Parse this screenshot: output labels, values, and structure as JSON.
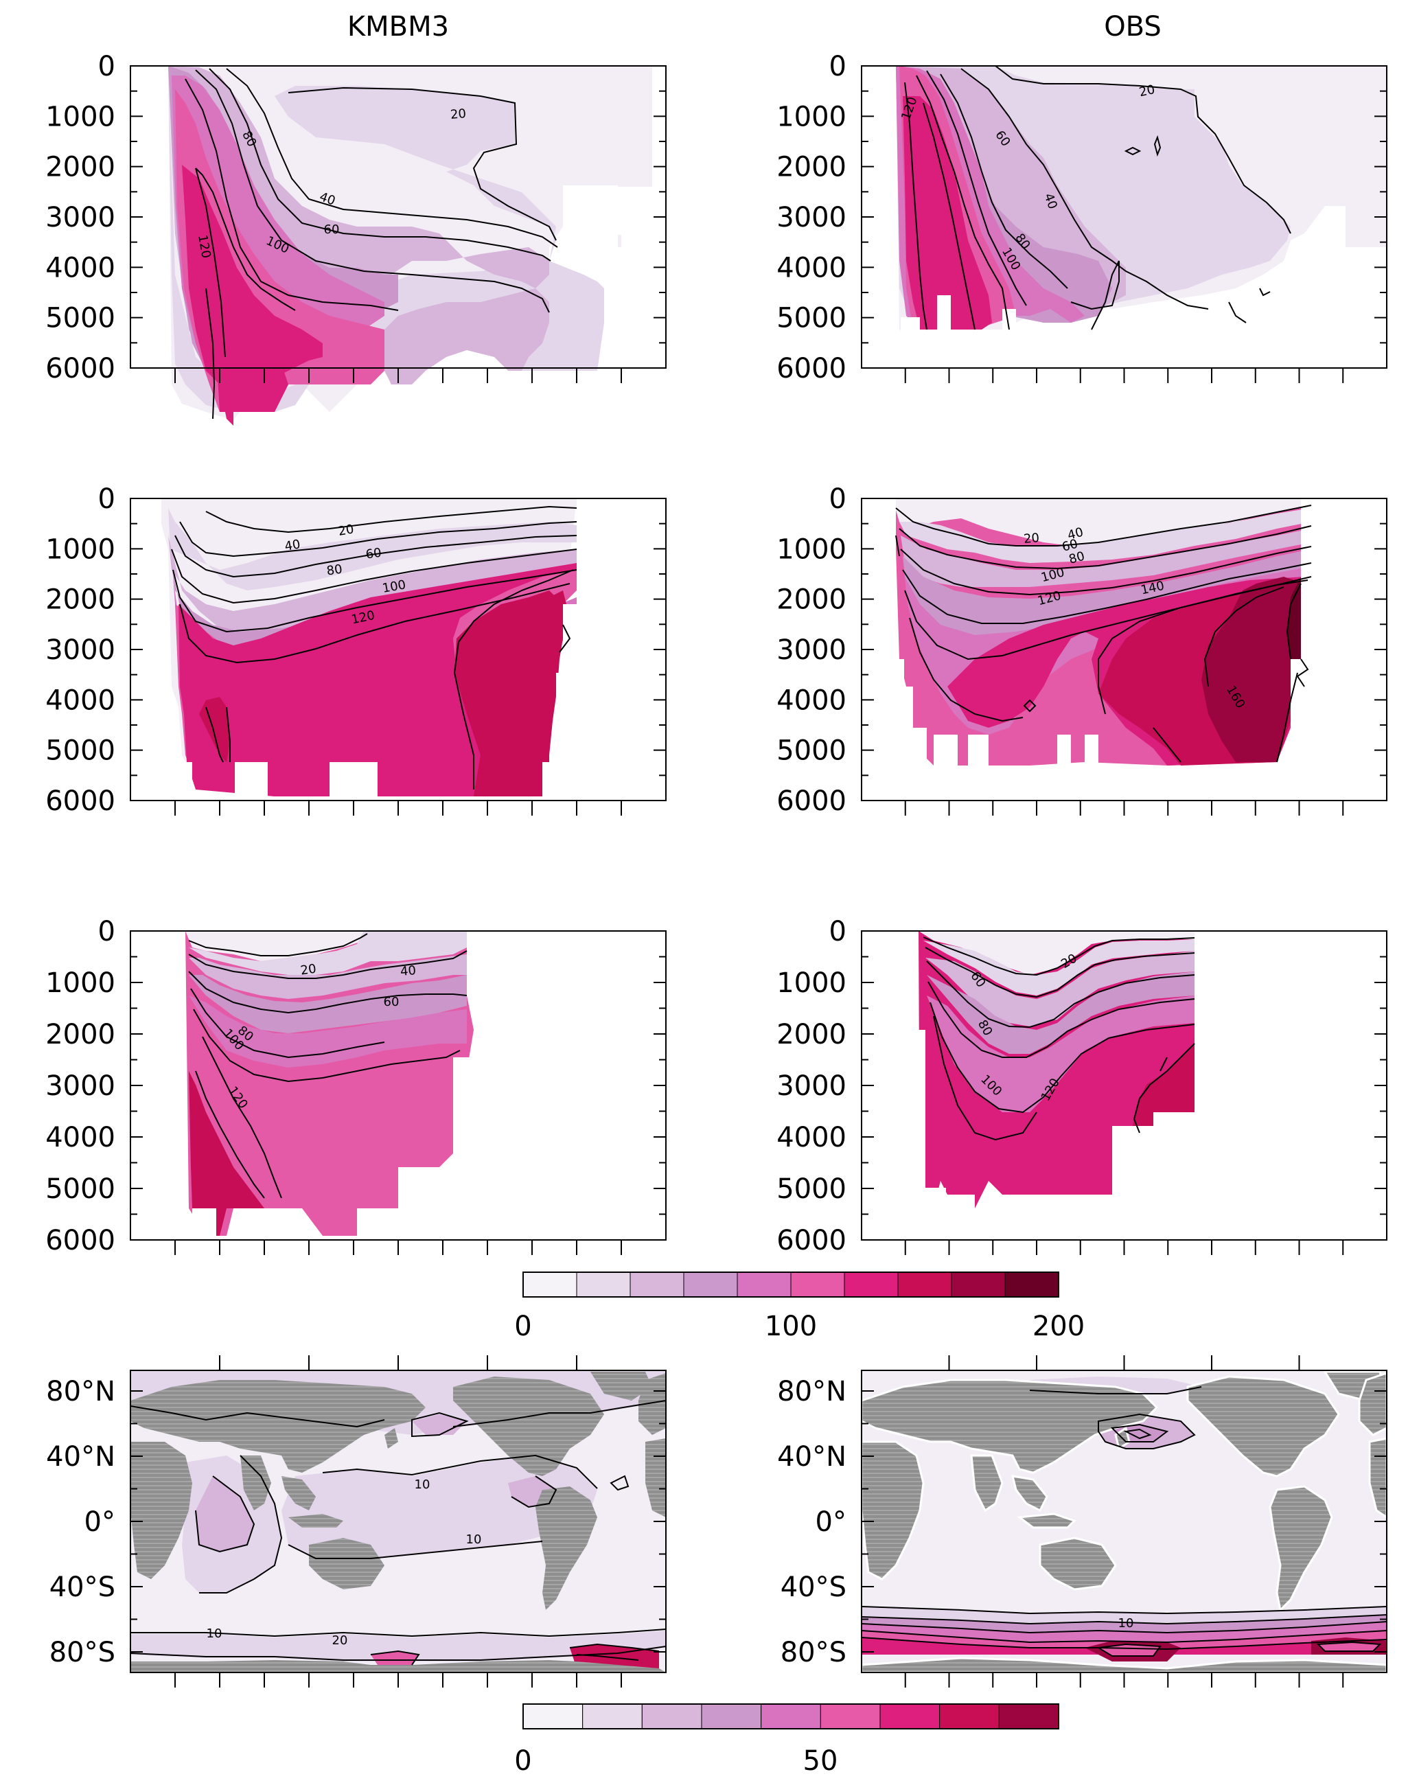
{
  "columns": [
    "KMBM3",
    "OBS"
  ],
  "colors": {
    "depth_scale": [
      "#f5f3f7",
      "#e6daeb",
      "#d9b7db",
      "#cc99cc",
      "#da73bf",
      "#e65aa8",
      "#de1f7d",
      "#c90e56",
      "#9c0540",
      "#6b0026"
    ],
    "surface_scale": [
      "#f5f3f7",
      "#e6daeb",
      "#d9b7db",
      "#cc99cc",
      "#da73bf",
      "#e65aa8",
      "#de1f7d",
      "#c90e56",
      "#9c0540",
      "#6b0026"
    ],
    "land": "#969696"
  },
  "chart_data": [
    {
      "type": "heatmap",
      "panel": "depth-atlantic-kmbm3",
      "column": "KMBM3",
      "yticks": [
        "0",
        "1000",
        "2000",
        "3000",
        "4000",
        "5000",
        "6000"
      ],
      "ylim": [
        6000,
        0
      ],
      "contour_labels": [
        "20",
        "40",
        "60",
        "80",
        "100",
        "120"
      ]
    },
    {
      "type": "heatmap",
      "panel": "depth-atlantic-obs",
      "column": "OBS",
      "yticks": [
        "0",
        "1000",
        "2000",
        "3000",
        "4000",
        "5000",
        "6000"
      ],
      "ylim": [
        6000,
        0
      ],
      "contour_labels": [
        "20",
        "40",
        "60",
        "80",
        "100",
        "120"
      ]
    },
    {
      "type": "heatmap",
      "panel": "depth-pacific-kmbm3",
      "column": "KMBM3",
      "yticks": [
        "0",
        "1000",
        "2000",
        "3000",
        "4000",
        "5000",
        "6000"
      ],
      "ylim": [
        6000,
        0
      ],
      "contour_labels": [
        "20",
        "40",
        "60",
        "80",
        "100",
        "120"
      ]
    },
    {
      "type": "heatmap",
      "panel": "depth-pacific-obs",
      "column": "OBS",
      "yticks": [
        "0",
        "1000",
        "2000",
        "3000",
        "4000",
        "5000",
        "6000"
      ],
      "ylim": [
        6000,
        0
      ],
      "contour_labels": [
        "20",
        "40",
        "60",
        "80",
        "100",
        "120",
        "140",
        "160"
      ]
    },
    {
      "type": "heatmap",
      "panel": "depth-indian-kmbm3",
      "column": "KMBM3",
      "yticks": [
        "0",
        "1000",
        "2000",
        "3000",
        "4000",
        "5000",
        "6000"
      ],
      "ylim": [
        6000,
        0
      ],
      "contour_labels": [
        "20",
        "40",
        "60",
        "80",
        "100",
        "120"
      ]
    },
    {
      "type": "heatmap",
      "panel": "depth-indian-obs",
      "column": "OBS",
      "yticks": [
        "0",
        "1000",
        "2000",
        "3000",
        "4000",
        "5000",
        "6000"
      ],
      "ylim": [
        6000,
        0
      ],
      "contour_labels": [
        "20",
        "60",
        "80",
        "100",
        "120"
      ]
    },
    {
      "type": "heatmap",
      "panel": "surface-map-kmbm3",
      "column": "KMBM3",
      "yticks": [
        "80°N",
        "40°N",
        "0°",
        "40°S",
        "80°S"
      ],
      "contour_labels": [
        "10",
        "10",
        "10",
        "20"
      ]
    },
    {
      "type": "heatmap",
      "panel": "surface-map-obs",
      "column": "OBS",
      "yticks": [
        "80°N",
        "40°N",
        "0°",
        "40°S",
        "80°S"
      ],
      "contour_labels": [
        "10"
      ]
    }
  ],
  "colorbars": [
    {
      "name": "depth-colorbar",
      "ticks": [
        "0",
        "100",
        "200"
      ],
      "tick_values": [
        0,
        100,
        200
      ],
      "range": [
        0,
        200
      ],
      "levels": 10
    },
    {
      "name": "surface-colorbar",
      "ticks": [
        "0",
        "50"
      ],
      "tick_values": [
        0,
        50
      ],
      "range": [
        0,
        90
      ],
      "levels": 9
    }
  ]
}
